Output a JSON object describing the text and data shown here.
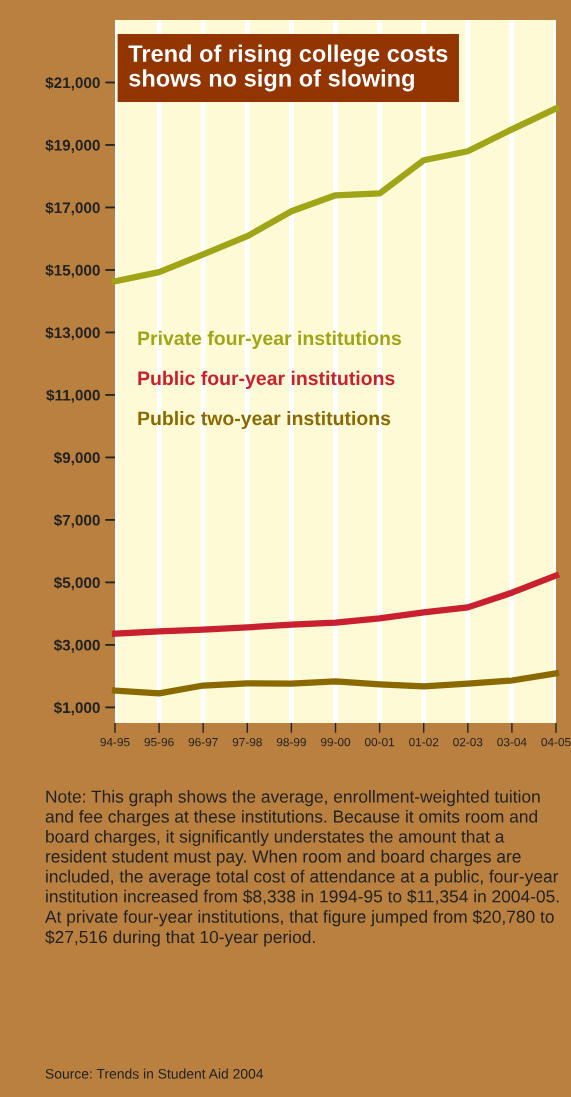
{
  "chart_data": {
    "type": "line",
    "title": "Trend of rising college costs\nshows no sign of slowing",
    "categories": [
      "94-95",
      "95-96",
      "96-97",
      "97-98",
      "98-99",
      "99-00",
      "00-01",
      "01-02",
      "02-03",
      "03-04",
      "04-05"
    ],
    "series": [
      {
        "name": "Private four-year institutions",
        "color": "#9fa516",
        "values": [
          14640,
          14930,
          15500,
          16080,
          16880,
          17390,
          17450,
          18510,
          18800,
          19500,
          20170
        ]
      },
      {
        "name": "Public four-year institutions",
        "color": "#c8202e",
        "values": [
          3360,
          3430,
          3490,
          3560,
          3650,
          3710,
          3850,
          4040,
          4200,
          4670,
          5220
        ]
      },
      {
        "name": "Public two-year institutions",
        "color": "#8a6a00",
        "values": [
          1540,
          1450,
          1700,
          1770,
          1760,
          1830,
          1740,
          1670,
          1760,
          1860,
          2090
        ]
      }
    ],
    "ylim": [
      500,
      23000
    ],
    "yticks": [
      {
        "value": 1000,
        "label": "$1,000"
      },
      {
        "value": 3000,
        "label": "$3,000"
      },
      {
        "value": 5000,
        "label": "$5,000"
      },
      {
        "value": 7000,
        "label": "$7,000"
      },
      {
        "value": 9000,
        "label": "$9,000"
      },
      {
        "value": 11000,
        "label": "$11,000"
      },
      {
        "value": 13000,
        "label": "$13,000"
      },
      {
        "value": 15000,
        "label": "$15,000"
      },
      {
        "value": 17000,
        "label": "$17,000"
      },
      {
        "value": 19000,
        "label": "$19,000"
      },
      {
        "value": 21000,
        "label": "$21,000"
      }
    ],
    "grid": "x",
    "legend": "left",
    "marker": "none",
    "line_style": "solid",
    "annotations": [
      "Note: This graph shows the average, enrollment-weighted tuition and fee charges at these institutions. Because it omits room and board charges, it significantly understates the amount that a resident student must pay. When room and board charges are included, the average total cost of attendance at a public, four-year institution increased from $8,338 in 1994-95 to $11,354 in 2004-05. At private four-year institutions, that figure jumped from $20,780 to $27,516 during that 10-year period.",
      "Source: Trends in Student Aid 2004"
    ]
  }
}
